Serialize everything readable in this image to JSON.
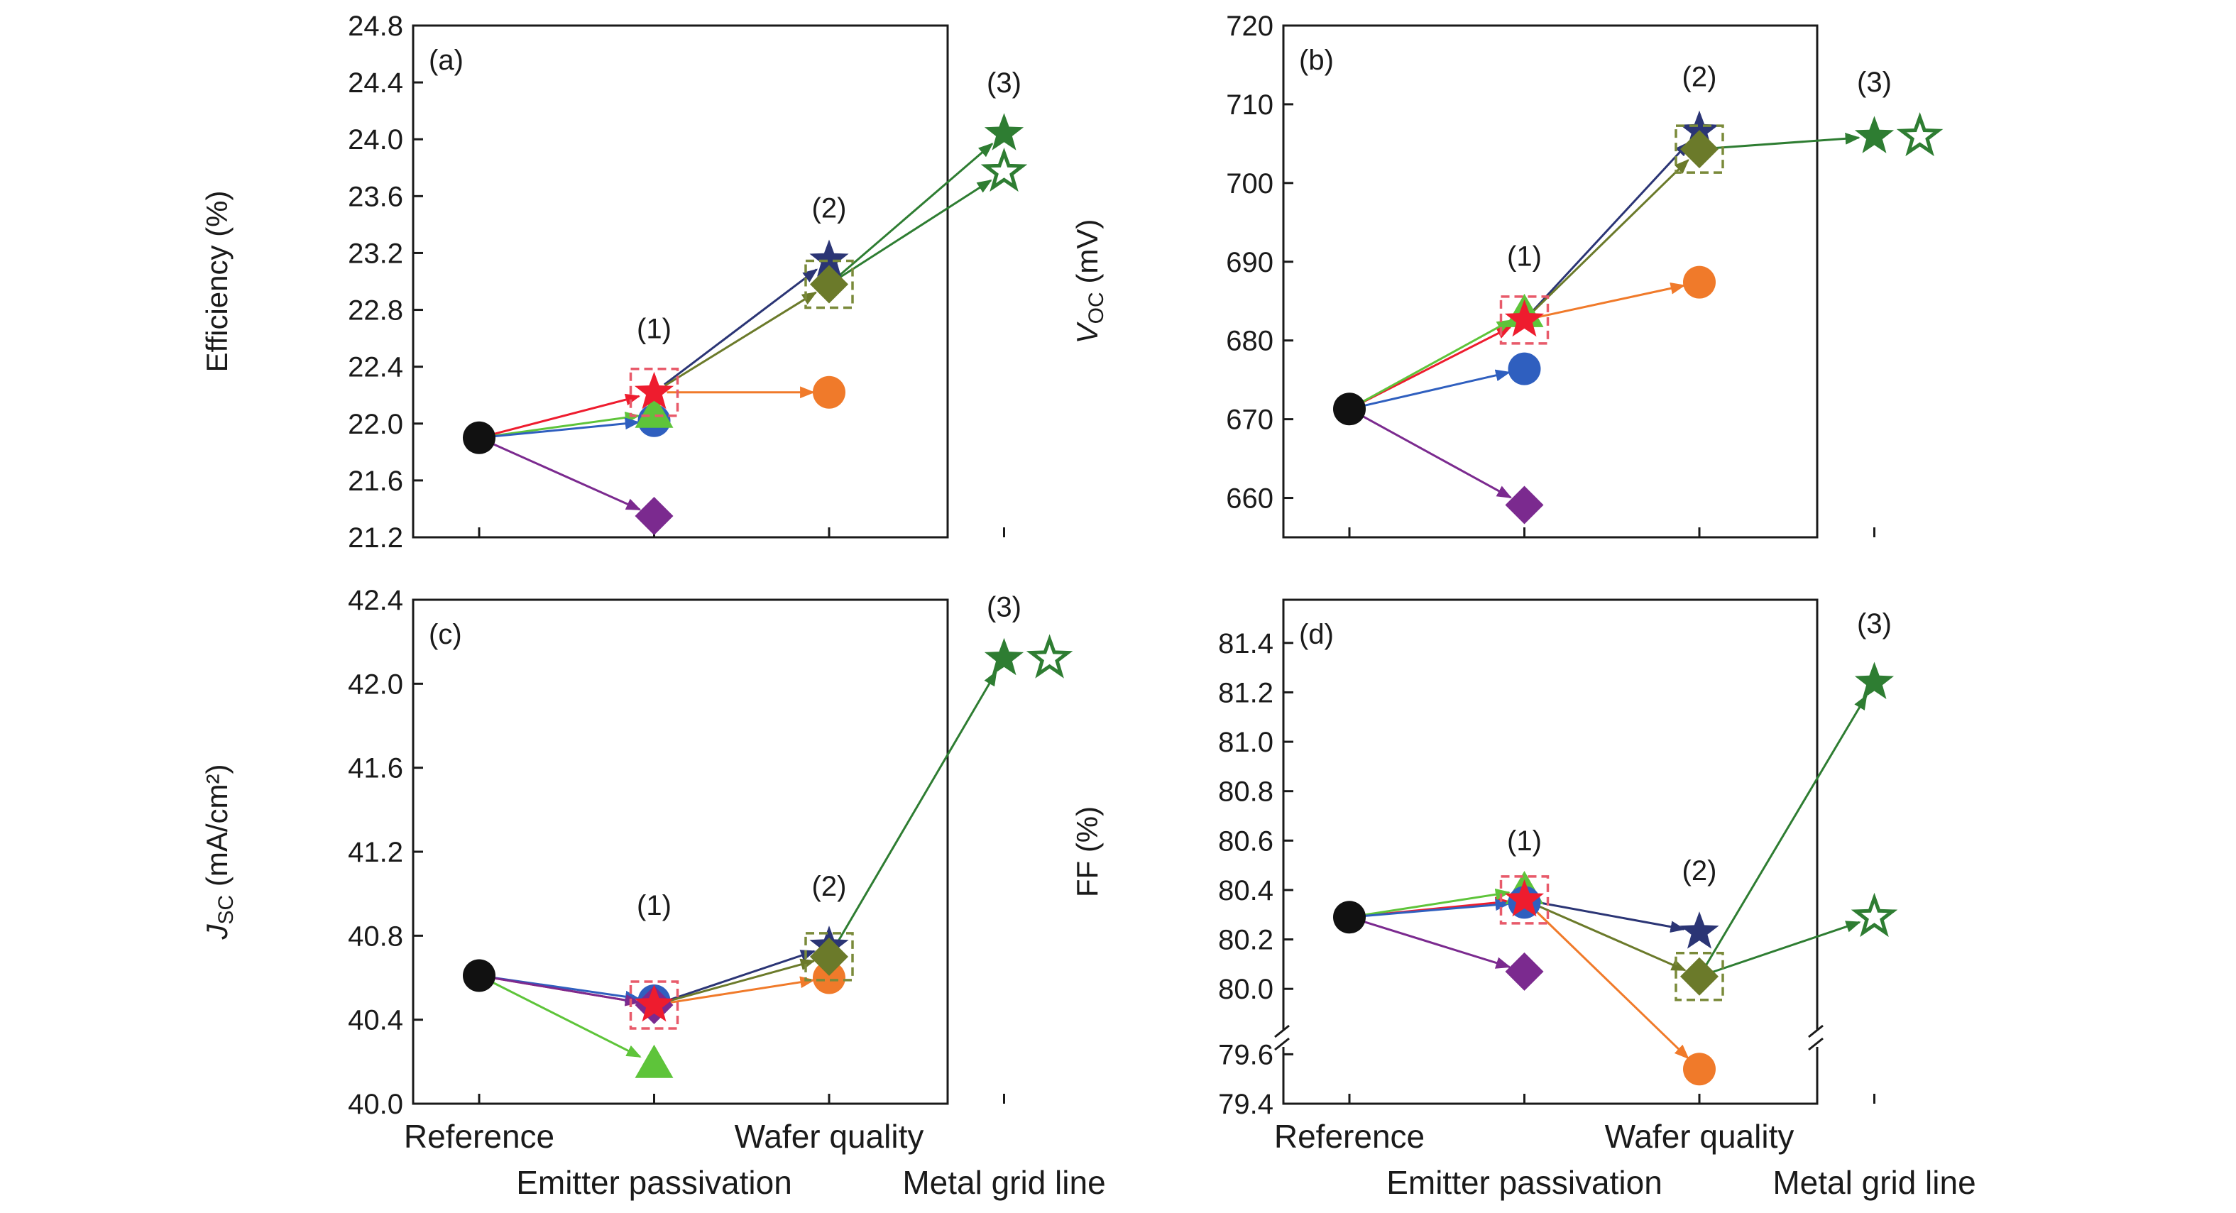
{
  "chart_data": [
    {
      "panel": "a",
      "panel_label": "(a)",
      "type": "scatter",
      "ylabel": "Efficiency (%)",
      "ylim": [
        21.2,
        24.8
      ],
      "yticks": [
        "21.2",
        "21.6",
        "22.0",
        "22.4",
        "22.8",
        "23.2",
        "23.6",
        "24.0",
        "24.4",
        "24.8"
      ],
      "points": [
        {
          "id": "ref",
          "x": 0,
          "y": 21.9,
          "marker": "circle",
          "color": "#111111"
        },
        {
          "id": "em_blue",
          "x": 1,
          "y": 22.02,
          "marker": "circle",
          "color": "#2f5fbf"
        },
        {
          "id": "em_green",
          "x": 1,
          "y": 22.07,
          "marker": "triangle",
          "color": "#5ec43a"
        },
        {
          "id": "em_red",
          "x": 1,
          "y": 22.22,
          "marker": "star",
          "color": "#ee1c2e",
          "box": true
        },
        {
          "id": "em_purple",
          "x": 1,
          "y": 21.35,
          "marker": "diamond",
          "color": "#7b2a8f"
        },
        {
          "id": "wq_orange",
          "x": 2,
          "y": 22.22,
          "marker": "circle",
          "color": "#f07a2a"
        },
        {
          "id": "wq_navy",
          "x": 2,
          "y": 23.15,
          "marker": "star",
          "color": "#2b3575"
        },
        {
          "id": "wq_olive",
          "x": 2,
          "y": 22.98,
          "marker": "diamond",
          "color": "#6b7a2a",
          "box": true
        },
        {
          "id": "mg_filled",
          "x": 3,
          "y": 24.04,
          "marker": "star",
          "color": "#2e7d32"
        },
        {
          "id": "mg_open",
          "x": 3,
          "y": 23.77,
          "marker": "star-open",
          "color": "#2e7d32"
        }
      ],
      "arrows": [
        {
          "from": "ref",
          "to": "em_red",
          "color": "#ee1c2e"
        },
        {
          "from": "ref",
          "to": "em_green",
          "color": "#5ec43a"
        },
        {
          "from": "ref",
          "to": "em_blue",
          "color": "#2f5fbf"
        },
        {
          "from": "ref",
          "to": "em_purple",
          "color": "#7b2a8f"
        },
        {
          "from": "em_red",
          "to": "wq_orange",
          "color": "#f07a2a"
        },
        {
          "from": "em_red",
          "to": "wq_navy",
          "color": "#2b3575"
        },
        {
          "from": "em_red",
          "to": "wq_olive",
          "color": "#6b7a2a"
        },
        {
          "from": "wq_olive",
          "to": "mg_filled",
          "color": "#2e7d32"
        },
        {
          "from": "wq_olive",
          "to": "mg_open",
          "color": "#2e7d32"
        }
      ],
      "annotations": [
        {
          "text": "(1)",
          "x": 1,
          "y": 22.6
        },
        {
          "text": "(2)",
          "x": 2,
          "y": 23.45
        },
        {
          "text": "(3)",
          "x": 3,
          "y": 24.33
        }
      ]
    },
    {
      "panel": "b",
      "panel_label": "(b)",
      "type": "scatter",
      "ylabel_main": "V",
      "ylabel_sub": "OC",
      "ylabel_unit": " (mV)",
      "ylim": [
        655,
        720
      ],
      "yticks": [
        "660",
        "670",
        "680",
        "690",
        "700",
        "710",
        "720"
      ],
      "points": [
        {
          "id": "ref",
          "x": 0,
          "y": 671.3,
          "marker": "circle",
          "color": "#111111"
        },
        {
          "id": "em_blue",
          "x": 1,
          "y": 676.4,
          "marker": "circle",
          "color": "#2f5fbf"
        },
        {
          "id": "em_green",
          "x": 1,
          "y": 683.5,
          "marker": "triangle",
          "color": "#5ec43a"
        },
        {
          "id": "em_red",
          "x": 1,
          "y": 682.6,
          "marker": "star",
          "color": "#ee1c2e",
          "box": true
        },
        {
          "id": "em_purple",
          "x": 1,
          "y": 659.1,
          "marker": "diamond",
          "color": "#7b2a8f"
        },
        {
          "id": "wq_orange",
          "x": 2,
          "y": 687.4,
          "marker": "circle",
          "color": "#f07a2a"
        },
        {
          "id": "wq_navy",
          "x": 2,
          "y": 706.6,
          "marker": "star",
          "color": "#2b3575"
        },
        {
          "id": "wq_olive",
          "x": 2,
          "y": 704.3,
          "marker": "diamond",
          "color": "#6b7a2a",
          "box": true
        },
        {
          "id": "mg_filled",
          "x": 3,
          "y": 705.9,
          "marker": "star",
          "color": "#2e7d32"
        },
        {
          "id": "mg_open",
          "x": 3.26,
          "y": 705.9,
          "marker": "star-open",
          "color": "#2e7d32"
        }
      ],
      "arrows": [
        {
          "from": "ref",
          "to": "em_red",
          "color": "#ee1c2e"
        },
        {
          "from": "ref",
          "to": "em_green",
          "color": "#5ec43a"
        },
        {
          "from": "ref",
          "to": "em_blue",
          "color": "#2f5fbf"
        },
        {
          "from": "ref",
          "to": "em_purple",
          "color": "#7b2a8f"
        },
        {
          "from": "em_red",
          "to": "wq_orange",
          "color": "#f07a2a"
        },
        {
          "from": "em_red",
          "to": "wq_navy",
          "color": "#2b3575"
        },
        {
          "from": "em_red",
          "to": "wq_olive",
          "color": "#6b7a2a"
        },
        {
          "from": "wq_olive",
          "to": "mg_filled",
          "color": "#2e7d32"
        }
      ],
      "annotations": [
        {
          "text": "(1)",
          "x": 1,
          "y": 689.5
        },
        {
          "text": "(2)",
          "x": 2,
          "y": 712.3
        },
        {
          "text": "(3)",
          "x": 3,
          "y": 711.6
        }
      ]
    },
    {
      "panel": "c",
      "panel_label": "(c)",
      "type": "scatter",
      "ylabel_main": "J",
      "ylabel_sub": "SC",
      "ylabel_unit": " (mA/cm²)",
      "ylim": [
        40.0,
        42.4
      ],
      "yticks": [
        "40.0",
        "40.4",
        "40.8",
        "41.2",
        "41.6",
        "42.0",
        "42.4"
      ],
      "points": [
        {
          "id": "ref",
          "x": 0,
          "y": 40.61,
          "marker": "circle",
          "color": "#111111"
        },
        {
          "id": "em_green",
          "x": 1,
          "y": 40.19,
          "marker": "triangle",
          "color": "#5ec43a"
        },
        {
          "id": "em_blue",
          "x": 1,
          "y": 40.49,
          "marker": "circle",
          "color": "#2f5fbf"
        },
        {
          "id": "em_purple",
          "x": 1,
          "y": 40.47,
          "marker": "diamond",
          "color": "#7b2a8f"
        },
        {
          "id": "em_red",
          "x": 1,
          "y": 40.47,
          "marker": "star",
          "color": "#ee1c2e",
          "box": true
        },
        {
          "id": "wq_orange",
          "x": 2,
          "y": 40.6,
          "marker": "circle",
          "color": "#f07a2a"
        },
        {
          "id": "wq_navy",
          "x": 2,
          "y": 40.75,
          "marker": "star",
          "color": "#2b3575"
        },
        {
          "id": "wq_olive",
          "x": 2,
          "y": 40.7,
          "marker": "diamond",
          "color": "#6b7a2a",
          "box": true
        },
        {
          "id": "mg_filled",
          "x": 3,
          "y": 42.12,
          "marker": "star",
          "color": "#2e7d32"
        },
        {
          "id": "mg_open",
          "x": 3.26,
          "y": 42.12,
          "marker": "star-open",
          "color": "#2e7d32"
        }
      ],
      "arrows": [
        {
          "from": "ref",
          "to": "em_red",
          "color": "#ee1c2e"
        },
        {
          "from": "ref",
          "to": "em_blue",
          "color": "#2f5fbf"
        },
        {
          "from": "ref",
          "to": "em_purple",
          "color": "#7b2a8f"
        },
        {
          "from": "ref",
          "to": "em_green",
          "color": "#5ec43a"
        },
        {
          "from": "em_red",
          "to": "wq_orange",
          "color": "#f07a2a"
        },
        {
          "from": "em_red",
          "to": "wq_navy",
          "color": "#2b3575"
        },
        {
          "from": "em_red",
          "to": "wq_olive",
          "color": "#6b7a2a"
        },
        {
          "from": "wq_olive",
          "to": "mg_filled",
          "color": "#2e7d32"
        }
      ],
      "annotations": [
        {
          "text": "(1)",
          "x": 1,
          "y": 40.9
        },
        {
          "text": "(2)",
          "x": 2,
          "y": 40.99
        },
        {
          "text": "(3)",
          "x": 3,
          "y": 42.32
        }
      ]
    },
    {
      "panel": "d",
      "panel_label": "(d)",
      "type": "scatter",
      "ylabel": "FF (%)",
      "axis_break": "between 80.0 and 79.6",
      "segments": {
        "upper": [
          79.9,
          81.5
        ],
        "lower": [
          79.4,
          79.8
        ]
      },
      "yticks_upper": [
        "80.0",
        "80.2",
        "80.4",
        "80.6",
        "80.8",
        "81.0",
        "81.2",
        "81.4"
      ],
      "yticks_lower": [
        "79.4",
        "79.6"
      ],
      "points": [
        {
          "id": "ref",
          "x": 0,
          "y": 80.29,
          "marker": "circle",
          "color": "#111111"
        },
        {
          "id": "em_green",
          "x": 1,
          "y": 80.4,
          "marker": "triangle",
          "color": "#5ec43a"
        },
        {
          "id": "em_blue",
          "x": 1,
          "y": 80.35,
          "marker": "circle",
          "color": "#2f5fbf"
        },
        {
          "id": "em_red",
          "x": 1,
          "y": 80.36,
          "marker": "star",
          "color": "#ee1c2e",
          "box": true
        },
        {
          "id": "em_purple",
          "x": 1,
          "y": 80.07,
          "marker": "diamond",
          "color": "#7b2a8f"
        },
        {
          "id": "wq_navy",
          "x": 2,
          "y": 80.23,
          "marker": "star",
          "color": "#2b3575"
        },
        {
          "id": "wq_olive",
          "x": 2,
          "y": 80.05,
          "marker": "diamond",
          "color": "#6b7a2a",
          "box": true
        },
        {
          "id": "wq_orange",
          "x": 2,
          "y": 79.54,
          "marker": "circle",
          "color": "#f07a2a"
        },
        {
          "id": "mg_filled",
          "x": 3,
          "y": 81.24,
          "marker": "star",
          "color": "#2e7d32"
        },
        {
          "id": "mg_open",
          "x": 3,
          "y": 80.29,
          "marker": "star-open",
          "color": "#2e7d32"
        }
      ],
      "arrows": [
        {
          "from": "ref",
          "to": "em_red",
          "color": "#ee1c2e"
        },
        {
          "from": "ref",
          "to": "em_green",
          "color": "#5ec43a"
        },
        {
          "from": "ref",
          "to": "em_blue",
          "color": "#2f5fbf"
        },
        {
          "from": "ref",
          "to": "em_purple",
          "color": "#7b2a8f"
        },
        {
          "from": "em_red",
          "to": "wq_navy",
          "color": "#2b3575"
        },
        {
          "from": "em_red",
          "to": "wq_olive",
          "color": "#6b7a2a"
        },
        {
          "from": "em_red",
          "to": "wq_orange",
          "color": "#f07a2a"
        },
        {
          "from": "wq_olive",
          "to": "mg_filled",
          "color": "#2e7d32"
        },
        {
          "from": "wq_olive",
          "to": "mg_open",
          "color": "#2e7d32"
        }
      ],
      "annotations": [
        {
          "text": "(1)",
          "x": 1,
          "y": 80.56
        },
        {
          "text": "(2)",
          "x": 2,
          "y": 80.44
        },
        {
          "text": "(3)",
          "x": 3,
          "y": 81.44
        }
      ]
    }
  ],
  "categories": [
    "Reference",
    "Emitter passivation",
    "Wafer quality",
    "Metal grid line"
  ]
}
